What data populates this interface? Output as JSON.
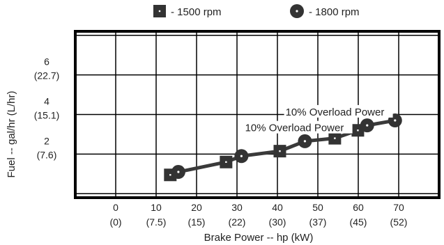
{
  "chart_data": {
    "type": "line",
    "xlabel": "Brake Power -- hp (kW)",
    "ylabel": "Fuel -- gal/hr (L/hr)",
    "xlim": [
      -10,
      80
    ],
    "ylim": [
      -0.2,
      8.2
    ],
    "x_ticks": [
      {
        "value": 0,
        "label": "0",
        "sub": "(0)"
      },
      {
        "value": 10,
        "label": "10",
        "sub": "(7.5)"
      },
      {
        "value": 20,
        "label": "20",
        "sub": "(15)"
      },
      {
        "value": 30,
        "label": "30",
        "sub": "(22)"
      },
      {
        "value": 40,
        "label": "40",
        "sub": "(30)"
      },
      {
        "value": 50,
        "label": "50",
        "sub": "(37)"
      },
      {
        "value": 60,
        "label": "60",
        "sub": "(45)"
      },
      {
        "value": 70,
        "label": "70",
        "sub": "(52)"
      }
    ],
    "y_ticks": [
      {
        "value": 2,
        "label": "2",
        "sub": "(7.6)"
      },
      {
        "value": 4,
        "label": "4",
        "sub": "(15.1)"
      },
      {
        "value": 6,
        "label": "6",
        "sub": "(22.7)"
      }
    ],
    "x_grid_values": [
      -10,
      0,
      10,
      20,
      30,
      40,
      50,
      60,
      70,
      80
    ],
    "y_grid_values": [
      0,
      2,
      4,
      6,
      8
    ],
    "grid": true,
    "legend_position": "top-center",
    "series": [
      {
        "name": "- 1500 rpm",
        "marker": "square",
        "x": [
          13.5,
          27.3,
          40.6,
          54.2,
          59.9
        ],
        "y": [
          0.95,
          1.6,
          2.15,
          2.8,
          3.2
        ]
      },
      {
        "name": "- 1800 rpm",
        "marker": "circle",
        "x": [
          15.5,
          31.1,
          46.8,
          62.2,
          69.1
        ],
        "y": [
          1.1,
          1.9,
          2.65,
          3.45,
          3.7
        ]
      }
    ],
    "annotations": [
      {
        "text": "10% Overload Power",
        "x": 42,
        "y": 3.95,
        "for_series": "- 1800 rpm"
      },
      {
        "text": "10% Overload Power",
        "x": 32,
        "y": 3.15,
        "for_series": "- 1500 rpm"
      }
    ]
  }
}
